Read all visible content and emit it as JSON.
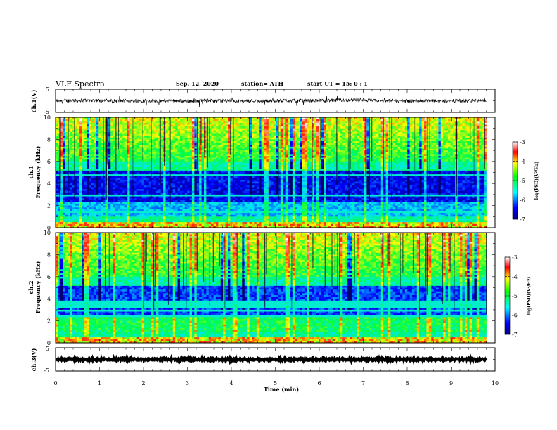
{
  "header": {
    "title": "VLF Spectra",
    "date": "Sep. 12, 2020",
    "station": "station= ATH",
    "start": "start  UT =   15: 0  : 1"
  },
  "chart_data": [
    {
      "type": "line",
      "name": "ch1-waveform",
      "ylabel": "ch.1(V)",
      "xlim": [
        0,
        10
      ],
      "ylim": [
        -5,
        5
      ],
      "yticks": [
        "5",
        "-5"
      ],
      "baseline": 0,
      "noise_amplitude": 1.5
    },
    {
      "type": "heatmap",
      "name": "ch1-spectrogram",
      "ylabel": "ch.1",
      "ylabel2": "Frequency (kHz)",
      "xlim": [
        0,
        10
      ],
      "ylim": [
        0,
        10
      ],
      "yticks": [
        "0",
        "2",
        "4",
        "6",
        "8",
        "10"
      ],
      "colorbar": {
        "label": "log(PSD)(V²/Hz)",
        "ticks": [
          "-3",
          "-4",
          "-5",
          "-6",
          "-7"
        ],
        "range": [
          -7,
          -3
        ]
      }
    },
    {
      "type": "heatmap",
      "name": "ch2-spectrogram",
      "ylabel": "ch.2",
      "ylabel2": "Frequency (kHz)",
      "xlim": [
        0,
        10
      ],
      "ylim": [
        0,
        10
      ],
      "yticks": [
        "0",
        "2",
        "4",
        "6",
        "8",
        "10"
      ],
      "colorbar": {
        "label": "log(PSD)(V²/Hz)",
        "ticks": [
          "-3",
          "-4",
          "-5",
          "-6",
          "-7"
        ],
        "range": [
          -7,
          -3
        ]
      }
    },
    {
      "type": "line",
      "name": "ch3-waveform",
      "ylabel": "ch.3(V)",
      "xlim": [
        0,
        10
      ],
      "ylim": [
        -5,
        5
      ],
      "yticks": [
        "5",
        "-5"
      ],
      "baseline": 0,
      "noise_amplitude": 0.3
    }
  ],
  "x_axis": {
    "label": "Time (min)",
    "ticks": [
      "0",
      "1",
      "2",
      "3",
      "4",
      "5",
      "6",
      "7",
      "8",
      "9",
      "10"
    ],
    "data_end": 9.8
  }
}
